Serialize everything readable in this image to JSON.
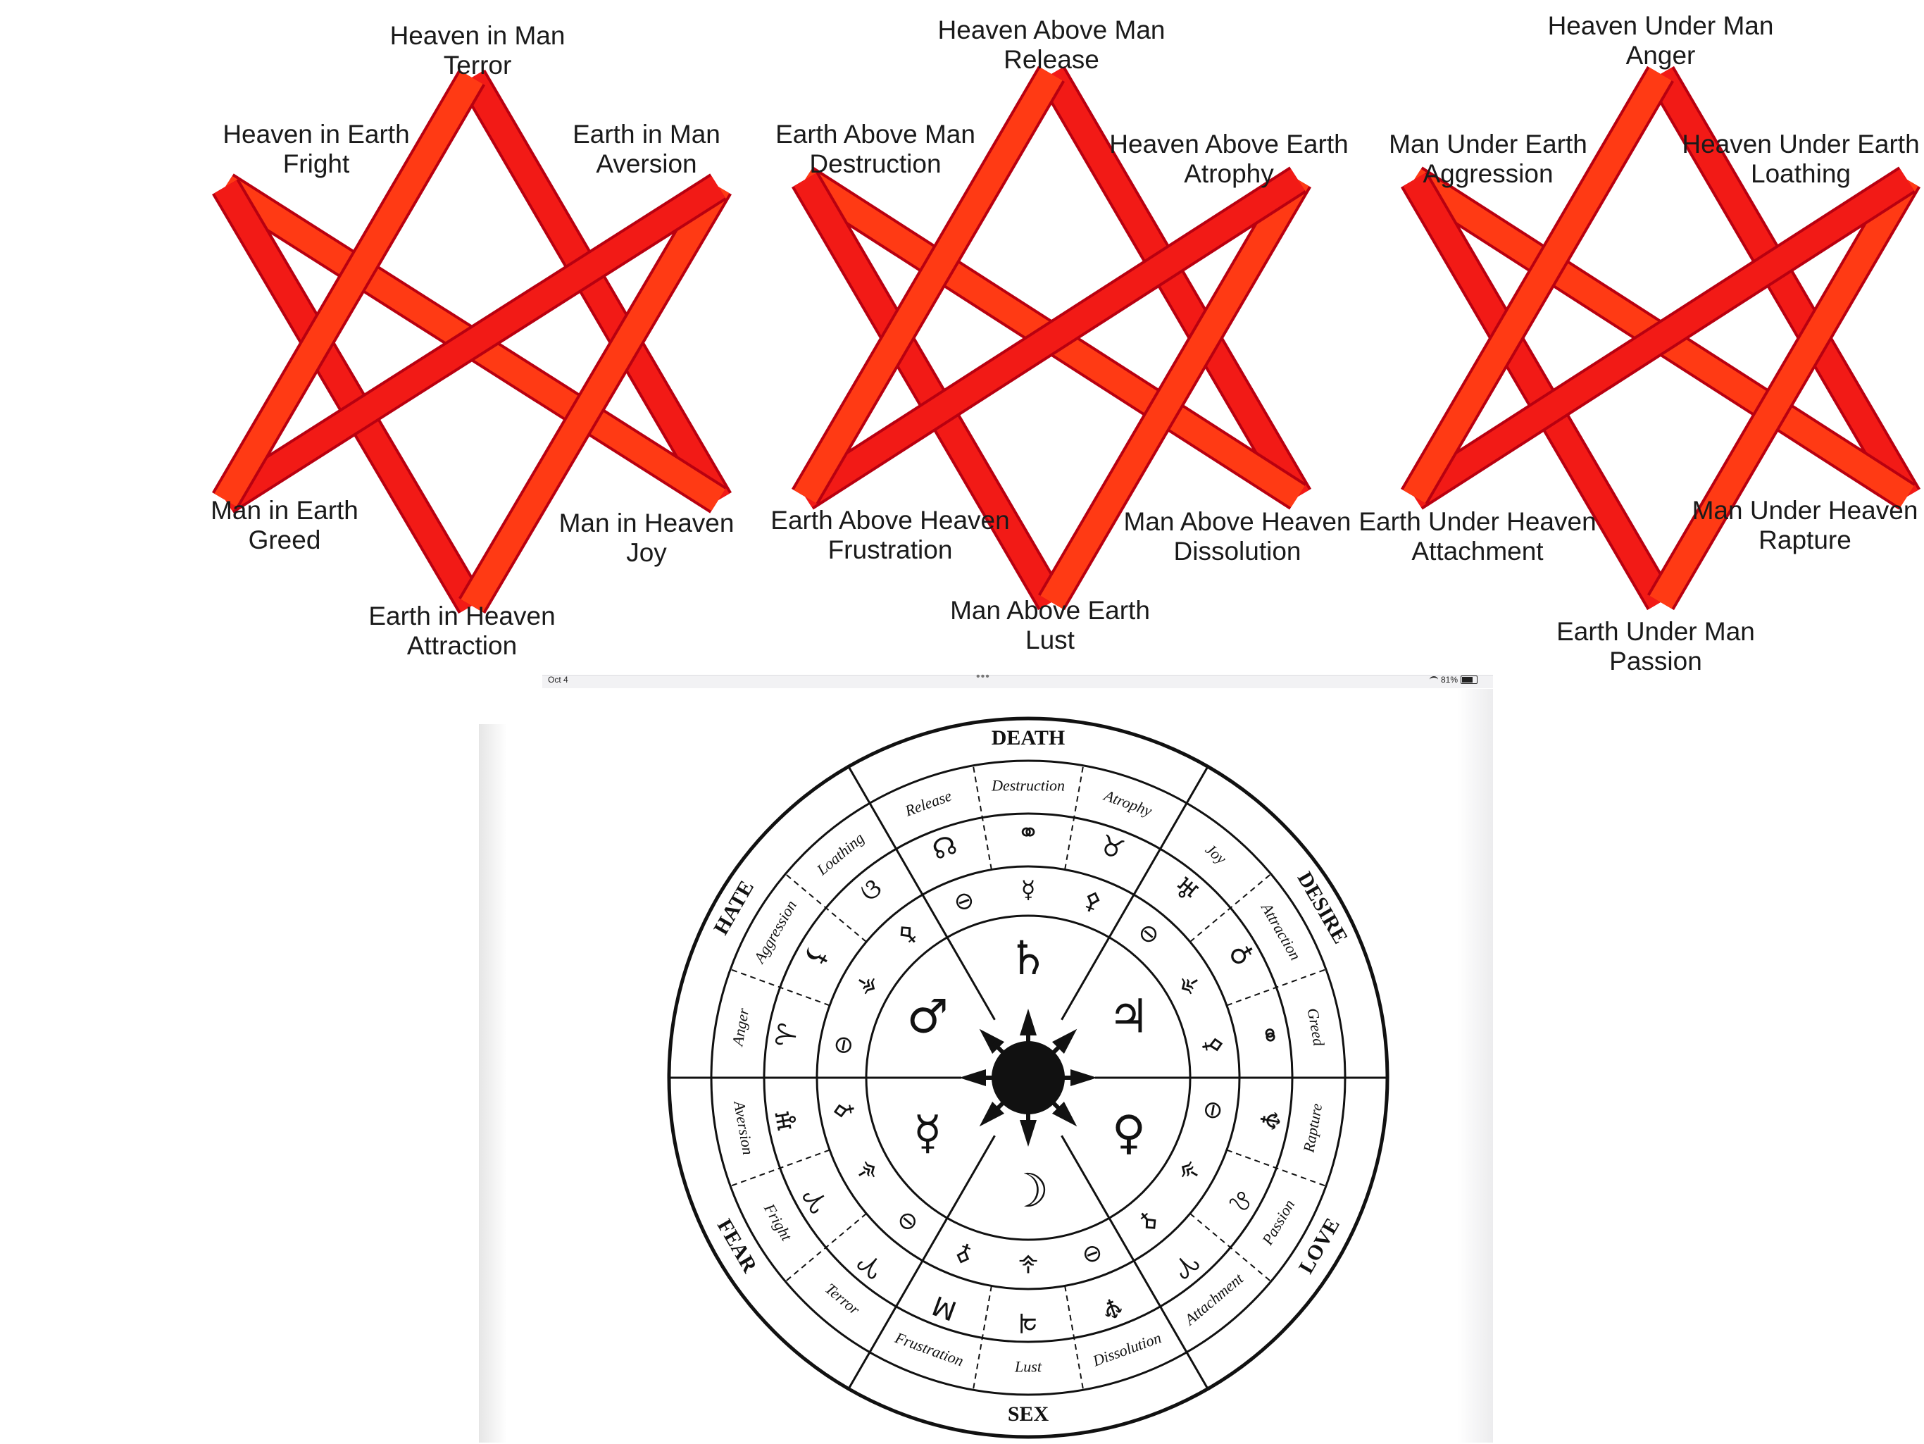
{
  "colors": {
    "star_light": "#ff4e1a",
    "star_mid": "#f02818",
    "star_dark": "#b80010",
    "ink": "#111111"
  },
  "stars": [
    {
      "labels": [
        {
          "line1": "Heaven in Man",
          "line2": "Terror"
        },
        {
          "line1": "Earth in Man",
          "line2": "Aversion"
        },
        {
          "line1": "Man in Heaven",
          "line2": "Joy"
        },
        {
          "line1": "Earth in Heaven",
          "line2": "Attraction"
        },
        {
          "line1": "Man in Earth",
          "line2": "Greed"
        },
        {
          "line1": "Heaven in Earth",
          "line2": "Fright"
        }
      ]
    },
    {
      "labels": [
        {
          "line1": "Heaven Above Man",
          "line2": "Release"
        },
        {
          "line1": "Heaven Above Earth",
          "line2": "Atrophy"
        },
        {
          "line1": "Man Above Heaven",
          "line2": "Dissolution"
        },
        {
          "line1": "Man Above Earth",
          "line2": "Lust"
        },
        {
          "line1": "Earth Above Heaven",
          "line2": "Frustration"
        },
        {
          "line1": "Earth Above Man",
          "line2": "Destruction"
        }
      ]
    },
    {
      "labels": [
        {
          "line1": "Heaven Under Man",
          "line2": "Anger"
        },
        {
          "line1": "Heaven Under Earth",
          "line2": "Loathing"
        },
        {
          "line1": "Man Under Heaven",
          "line2": "Rapture"
        },
        {
          "line1": "Earth Under Man",
          "line2": "Passion"
        },
        {
          "line1": "Earth Under Heaven",
          "line2": "Attachment"
        },
        {
          "line1": "Man Under Earth",
          "line2": "Aggression"
        }
      ]
    }
  ],
  "tablet": {
    "date": "Oct 4",
    "dots": "•••",
    "battery_text": "81%",
    "battery_level": 0.81
  },
  "wheel": {
    "quadrants": [
      "DEATH",
      "DESIRE",
      "LOVE",
      "SEX",
      "FEAR",
      "HATE"
    ],
    "emotions": [
      "Release",
      "Destruction",
      "Atrophy",
      "Joy",
      "Attraction",
      "Greed",
      "Rapture",
      "Passion",
      "Attachment",
      "Dissolution",
      "Lust",
      "Frustration",
      "Terror",
      "Fright",
      "Aversion",
      "Anger",
      "Aggression",
      "Loathing"
    ],
    "emotion_glyphs": [
      "☊",
      "⚭",
      "♉",
      "♅",
      "♁",
      "⚭",
      "♆",
      "♌",
      "♈",
      "♆",
      "♃",
      "M",
      "♈",
      "♈",
      "♅",
      "♈",
      "⚸",
      "ଓ"
    ],
    "middle_glyphs": [
      "⊖",
      "☿",
      "⚴",
      "⊖",
      "⚶",
      "⚴",
      "⊖",
      "⚶",
      "⚴",
      "⊖",
      "⚶",
      "⚴",
      "⊖",
      "⚶",
      "⚴",
      "⊖",
      "⚶",
      "⚴"
    ],
    "inner_glyphs": [
      "♄",
      "♃",
      "♀",
      "☽",
      "☿",
      "♂"
    ],
    "center_glyph": "✹"
  }
}
